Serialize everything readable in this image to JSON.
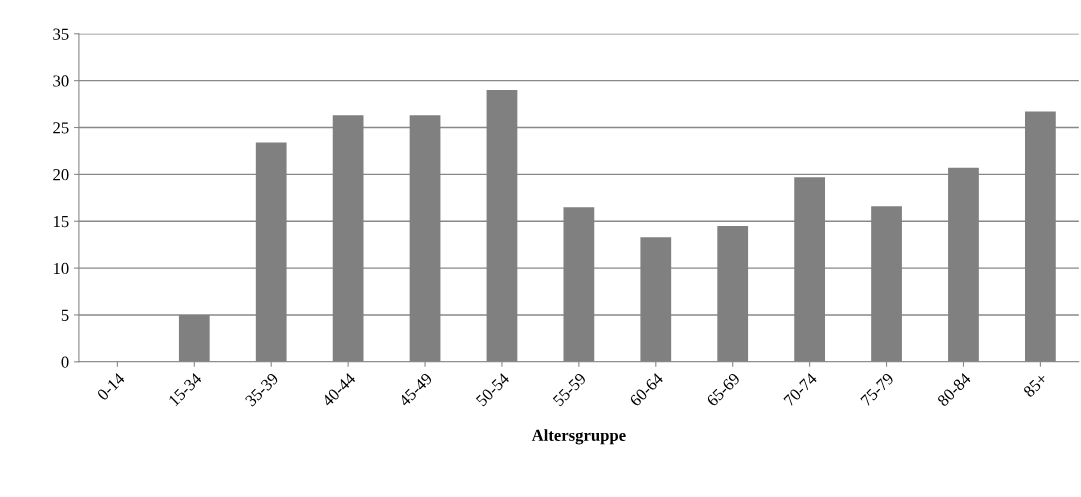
{
  "chart_data": {
    "type": "bar",
    "xlabel": "Altersgruppe",
    "categories": [
      "0-14",
      "15-34",
      "35-39",
      "40-44",
      "45-49",
      "50-54",
      "55-59",
      "60-64",
      "65-69",
      "70-74",
      "75-79",
      "80-84",
      "85+"
    ],
    "values": [
      0,
      5.0,
      23.4,
      26.3,
      26.3,
      29.0,
      16.5,
      13.3,
      14.5,
      19.7,
      16.6,
      20.7,
      26.7
    ],
    "color": "#808080",
    "ylim": [
      0,
      35
    ],
    "yticks": [
      0,
      5,
      10,
      15,
      20,
      25,
      30,
      35
    ],
    "grid": "y"
  }
}
